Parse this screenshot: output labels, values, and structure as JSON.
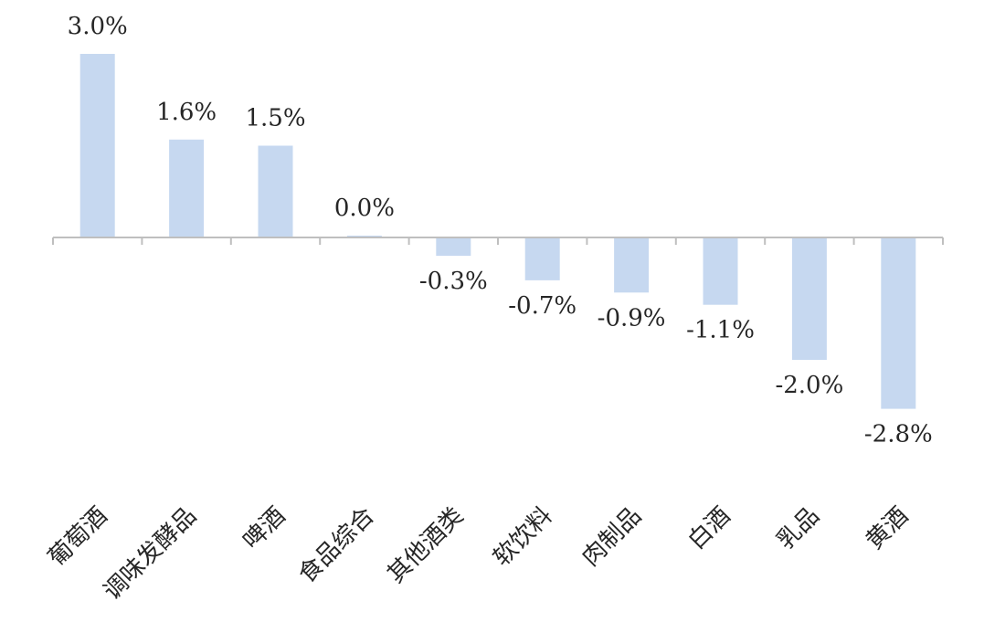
{
  "chart_data": {
    "type": "bar",
    "categories": [
      "葡萄酒",
      "调味发酵品",
      "啤酒",
      "食品综合",
      "其他酒类",
      "软饮料",
      "肉制品",
      "白酒",
      "乳品",
      "黄酒"
    ],
    "series": [
      {
        "values": [
          3.0,
          1.6,
          1.5,
          0.0,
          -0.3,
          -0.7,
          -0.9,
          -1.1,
          -2.0,
          -2.8
        ],
        "labels": [
          "3.0%",
          "1.6%",
          "1.5%",
          "0.0%",
          "-0.3%",
          "-0.7%",
          "-0.9%",
          "-1.1%",
          "-2.0%",
          "-2.8%"
        ],
        "color": "#c6d8f0"
      }
    ],
    "title": "",
    "xlabel": "",
    "ylabel": "",
    "ylim": [
      -3.0,
      3.0
    ],
    "y_axis_visible": false,
    "grid": false,
    "legend": "none",
    "data_labels": true,
    "colors": {
      "bar": "#c6d8f0",
      "axis": "#bfbfbf",
      "text": "#262626"
    }
  }
}
